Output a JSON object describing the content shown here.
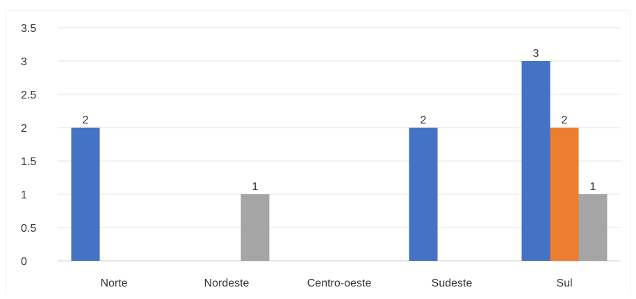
{
  "chart_data": {
    "type": "bar",
    "title": "",
    "xlabel": "",
    "ylabel": "",
    "categories": [
      "Norte",
      "Nordeste",
      "Centro-oeste",
      "Sudeste",
      "Sul"
    ],
    "series": [
      {
        "values": [
          2,
          0,
          0,
          2,
          3
        ],
        "color": "#4472c4"
      },
      {
        "values": [
          0,
          0,
          0,
          0,
          2
        ],
        "color": "#ed7d31"
      },
      {
        "values": [
          0,
          1,
          0,
          0,
          1
        ],
        "color": "#a5a5a5"
      }
    ],
    "ylim": [
      0,
      3.5
    ],
    "yticks": [
      "0",
      "0.5",
      "1",
      "1.5",
      "2",
      "2.5",
      "3",
      "3.5"
    ],
    "data_labels": true,
    "grid": true,
    "legend": "none"
  }
}
